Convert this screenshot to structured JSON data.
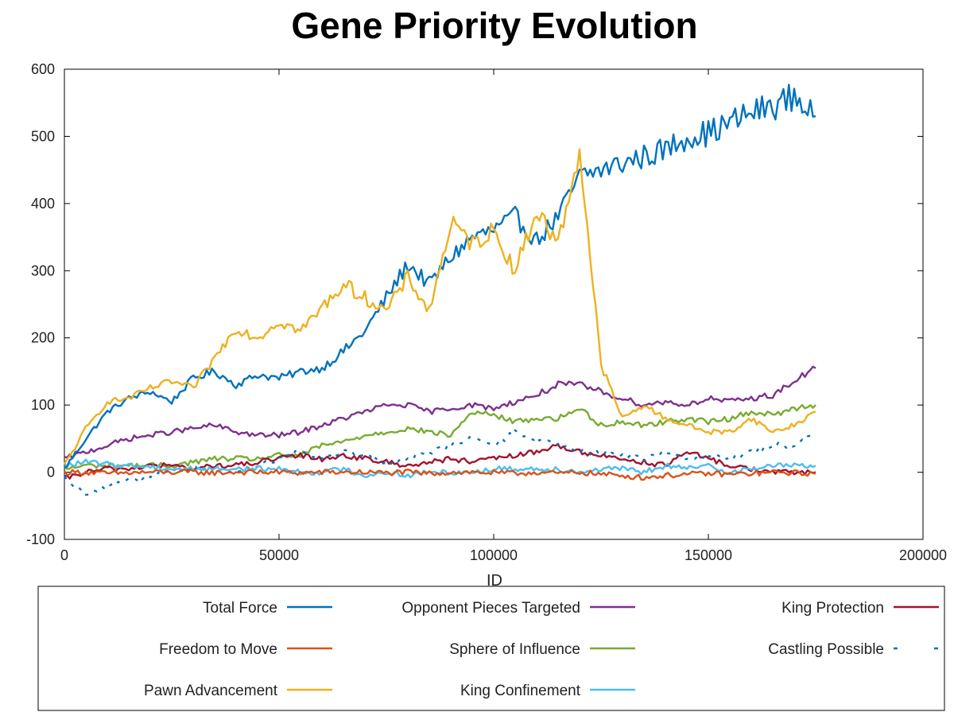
{
  "chart_data": {
    "type": "line",
    "title": "Gene Priority Evolution",
    "xlabel": "ID",
    "ylabel": "",
    "xlim": [
      0,
      200000
    ],
    "ylim": [
      -100,
      600
    ],
    "x_ticks": [
      "0",
      "50000",
      "100000",
      "150000",
      "200000"
    ],
    "y_ticks": [
      "-100",
      "0",
      "100",
      "200",
      "300",
      "400",
      "500",
      "600"
    ],
    "grid": false,
    "legend_position": "bottom",
    "x": [
      0,
      5000,
      10000,
      15000,
      20000,
      25000,
      30000,
      35000,
      40000,
      45000,
      50000,
      55000,
      60000,
      65000,
      70000,
      75000,
      80000,
      85000,
      90000,
      95000,
      100000,
      105000,
      110000,
      115000,
      120000,
      125000,
      130000,
      135000,
      140000,
      145000,
      150000,
      155000,
      160000,
      165000,
      170000,
      175000
    ],
    "series": [
      {
        "name": "Total Force",
        "color": "#0072bd",
        "style": "solid",
        "values": [
          5,
          50,
          90,
          110,
          120,
          105,
          140,
          150,
          130,
          145,
          140,
          150,
          155,
          180,
          210,
          260,
          310,
          280,
          320,
          350,
          360,
          380,
          345,
          380,
          440,
          450,
          460,
          470,
          480,
          500,
          505,
          520,
          535,
          545,
          560,
          530
        ]
      },
      {
        "name": "Freedom to Move",
        "color": "#d95319",
        "style": "solid",
        "values": [
          0,
          0,
          -2,
          -1,
          0,
          0,
          0,
          -1,
          0,
          0,
          0,
          -1,
          0,
          0,
          0,
          -1,
          0,
          -2,
          0,
          0,
          -1,
          -2,
          0,
          -2,
          0,
          -3,
          -5,
          -8,
          -5,
          -3,
          -2,
          -3,
          -2,
          0,
          -1,
          -2
        ]
      },
      {
        "name": "Pawn Advancement",
        "color": "#edb120",
        "style": "solid",
        "values": [
          10,
          65,
          105,
          110,
          125,
          135,
          125,
          170,
          215,
          200,
          225,
          210,
          245,
          280,
          260,
          240,
          290,
          240,
          370,
          340,
          360,
          300,
          390,
          340,
          480,
          160,
          80,
          100,
          80,
          70,
          60,
          60,
          80,
          60,
          70,
          90
        ]
      },
      {
        "name": "Opponent Pieces Targeted",
        "color": "#7e2f8e",
        "style": "solid",
        "values": [
          20,
          30,
          40,
          50,
          55,
          60,
          65,
          70,
          60,
          55,
          55,
          60,
          70,
          80,
          90,
          100,
          100,
          90,
          95,
          100,
          95,
          105,
          115,
          130,
          130,
          120,
          110,
          100,
          105,
          100,
          110,
          105,
          110,
          115,
          135,
          155
        ]
      },
      {
        "name": "Sphere of Influence",
        "color": "#77ac30",
        "style": "solid",
        "values": [
          5,
          10,
          10,
          10,
          10,
          10,
          15,
          20,
          20,
          20,
          25,
          25,
          40,
          45,
          55,
          60,
          65,
          60,
          55,
          90,
          85,
          75,
          80,
          80,
          95,
          70,
          75,
          70,
          75,
          80,
          75,
          80,
          90,
          85,
          95,
          100
        ]
      },
      {
        "name": "King Confinement",
        "color": "#4dbeee",
        "style": "solid",
        "values": [
          10,
          15,
          12,
          10,
          8,
          5,
          5,
          5,
          5,
          5,
          5,
          0,
          0,
          5,
          -5,
          0,
          -5,
          0,
          0,
          0,
          5,
          5,
          5,
          5,
          0,
          5,
          5,
          0,
          10,
          5,
          10,
          0,
          5,
          10,
          10,
          10
        ]
      },
      {
        "name": "King Protection",
        "color": "#a2142f",
        "style": "solid",
        "values": [
          -10,
          0,
          5,
          5,
          10,
          10,
          5,
          10,
          10,
          15,
          20,
          25,
          20,
          25,
          20,
          15,
          10,
          15,
          20,
          15,
          20,
          25,
          30,
          40,
          30,
          25,
          20,
          15,
          10,
          30,
          20,
          10,
          5,
          0,
          0,
          0
        ]
      },
      {
        "name": "Castling Possible",
        "color": "#0072bd",
        "style": "dashed",
        "values": [
          -10,
          -35,
          -20,
          -10,
          -5,
          0,
          5,
          5,
          0,
          10,
          20,
          30,
          20,
          30,
          25,
          10,
          20,
          30,
          40,
          50,
          40,
          60,
          50,
          40,
          30,
          30,
          25,
          20,
          30,
          20,
          25,
          20,
          30,
          40,
          40,
          60
        ]
      }
    ]
  }
}
